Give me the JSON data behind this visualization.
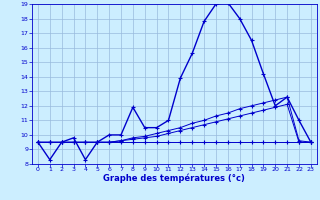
{
  "title": "Graphe des températures (°c)",
  "bg_color": "#cceeff",
  "line_color": "#0000cc",
  "grid_color": "#99bbdd",
  "ylim": [
    8,
    19
  ],
  "xlim": [
    -0.5,
    23.5
  ],
  "yticks": [
    8,
    9,
    10,
    11,
    12,
    13,
    14,
    15,
    16,
    17,
    18,
    19
  ],
  "xticks": [
    0,
    1,
    2,
    3,
    4,
    5,
    6,
    7,
    8,
    9,
    10,
    11,
    12,
    13,
    14,
    15,
    16,
    17,
    18,
    19,
    20,
    21,
    22,
    23
  ],
  "main_temps": [
    9.5,
    8.3,
    9.5,
    9.8,
    8.3,
    9.5,
    10.0,
    10.0,
    11.9,
    10.5,
    10.5,
    11.0,
    13.9,
    15.6,
    17.8,
    19.0,
    19.1,
    18.0,
    16.5,
    14.2,
    12.0,
    12.6,
    11.0,
    9.5
  ],
  "flat_line": [
    9.5,
    9.5,
    9.5,
    9.5,
    9.5,
    9.5,
    9.5,
    9.5,
    9.5,
    9.5,
    9.5,
    9.5,
    9.5,
    9.5,
    9.5,
    9.5,
    9.5,
    9.5,
    9.5,
    9.5,
    9.5,
    9.5,
    9.5,
    9.5
  ],
  "rise_line1": [
    9.5,
    9.5,
    9.5,
    9.5,
    9.5,
    9.5,
    9.5,
    9.6,
    9.7,
    9.8,
    9.9,
    10.1,
    10.3,
    10.5,
    10.7,
    10.9,
    11.1,
    11.3,
    11.5,
    11.7,
    11.9,
    12.1,
    9.5,
    9.5
  ],
  "rise_line2": [
    9.5,
    9.5,
    9.5,
    9.5,
    9.5,
    9.5,
    9.5,
    9.6,
    9.8,
    9.9,
    10.1,
    10.3,
    10.5,
    10.8,
    11.0,
    11.3,
    11.5,
    11.8,
    12.0,
    12.2,
    12.4,
    12.6,
    9.6,
    9.5
  ]
}
